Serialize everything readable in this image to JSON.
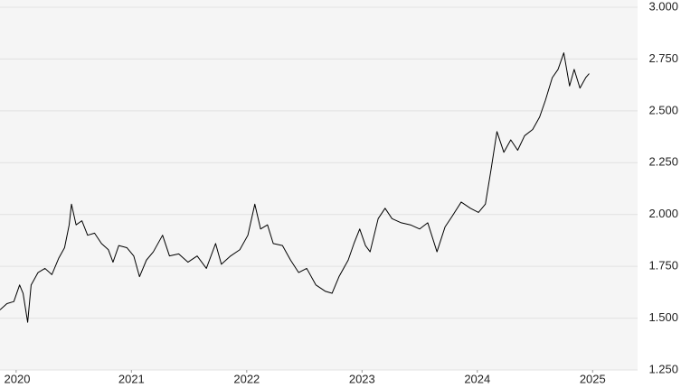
{
  "chart_data": {
    "type": "line",
    "x": [
      2019.86,
      2019.92,
      2019.98,
      2020.03,
      2020.06,
      2020.1,
      2020.13,
      2020.19,
      2020.25,
      2020.31,
      2020.37,
      2020.42,
      2020.46,
      2020.48,
      2020.52,
      2020.57,
      2020.62,
      2020.68,
      2020.74,
      2020.8,
      2020.84,
      2020.89,
      2020.96,
      2021.02,
      2021.07,
      2021.13,
      2021.19,
      2021.27,
      2021.33,
      2021.41,
      2021.49,
      2021.57,
      2021.65,
      2021.73,
      2021.78,
      2021.86,
      2021.94,
      2022.01,
      2022.07,
      2022.12,
      2022.18,
      2022.23,
      2022.31,
      2022.38,
      2022.45,
      2022.52,
      2022.6,
      2022.68,
      2022.74,
      2022.8,
      2022.88,
      2022.93,
      2022.98,
      2023.03,
      2023.07,
      2023.14,
      2023.2,
      2023.26,
      2023.34,
      2023.42,
      2023.5,
      2023.57,
      2023.65,
      2023.72,
      2023.78,
      2023.86,
      2023.94,
      2024.01,
      2024.07,
      2024.12,
      2024.17,
      2024.23,
      2024.29,
      2024.35,
      2024.41,
      2024.48,
      2024.54,
      2024.59,
      2024.65,
      2024.7,
      2024.75,
      2024.8,
      2024.84,
      2024.89,
      2024.94,
      2024.97
    ],
    "series": [
      {
        "color": "#000000",
        "values": [
          1.54,
          1.57,
          1.58,
          1.66,
          1.62,
          1.48,
          1.66,
          1.72,
          1.74,
          1.71,
          1.79,
          1.84,
          1.95,
          2.05,
          1.95,
          1.97,
          1.9,
          1.91,
          1.86,
          1.83,
          1.77,
          1.85,
          1.84,
          1.8,
          1.7,
          1.78,
          1.82,
          1.9,
          1.8,
          1.81,
          1.77,
          1.8,
          1.74,
          1.86,
          1.76,
          1.8,
          1.83,
          1.9,
          2.05,
          1.93,
          1.95,
          1.86,
          1.85,
          1.78,
          1.72,
          1.74,
          1.66,
          1.63,
          1.62,
          1.7,
          1.78,
          1.86,
          1.93,
          1.85,
          1.82,
          1.98,
          2.03,
          1.98,
          1.96,
          1.95,
          1.93,
          1.96,
          1.82,
          1.94,
          1.99,
          2.06,
          2.03,
          2.01,
          2.05,
          2.22,
          2.4,
          2.3,
          2.36,
          2.31,
          2.38,
          2.41,
          2.47,
          2.55,
          2.66,
          2.7,
          2.78,
          2.62,
          2.7,
          2.61,
          2.66,
          2.68
        ]
      }
    ],
    "xlim": [
      2019.86,
      2025.39
    ],
    "xticks": [
      2020,
      2021,
      2022,
      2023,
      2024,
      2025
    ],
    "ylim": [
      1.25,
      3.0
    ],
    "yticks": [
      {
        "value": 1.25,
        "label": "1.250"
      },
      {
        "value": 1.5,
        "label": "1.500"
      },
      {
        "value": 1.75,
        "label": "1.750"
      },
      {
        "value": 2,
        "label": "2.000"
      },
      {
        "value": 2.25,
        "label": "2.250"
      },
      {
        "value": 2.5,
        "label": "2.500"
      },
      {
        "value": 2.75,
        "label": "2.750"
      },
      {
        "value": 3,
        "label": "3.000"
      }
    ],
    "grid": true
  }
}
